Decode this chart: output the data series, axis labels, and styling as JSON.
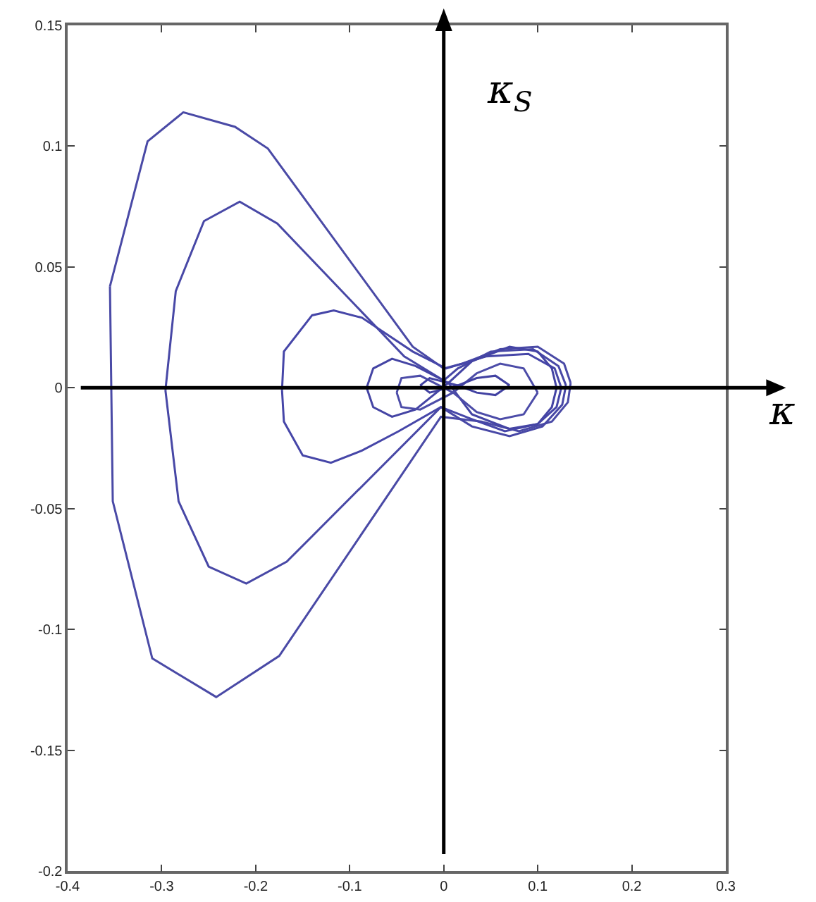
{
  "chart_data": {
    "type": "line",
    "xlim": [
      -0.4,
      0.3
    ],
    "xticks": [
      -0.4,
      -0.3,
      -0.2,
      -0.1,
      0,
      0.1,
      0.2,
      0.3
    ],
    "ylim": [
      -0.2,
      0.15
    ],
    "yticks": [
      -0.2,
      -0.15,
      -0.1,
      -0.05,
      0,
      0.05,
      0.1,
      0.15
    ],
    "grid": false,
    "ref_lines": [
      {
        "axis": "y",
        "value": 0,
        "label": "κ",
        "color": "#000000"
      },
      {
        "axis": "x",
        "value": 0,
        "label": "κ$_{S}$",
        "color": "#000000"
      }
    ],
    "series": [
      {
        "color": "#4a4aa6",
        "x": [
          -0.355,
          -0.315,
          -0.277,
          -0.222,
          -0.187,
          -0.033,
          0,
          0.02,
          0.06,
          0.1,
          0.128,
          0.135,
          null,
          -0.355,
          -0.352,
          -0.31,
          -0.242,
          -0.175,
          -0.003,
          0.04,
          0.08,
          0.115,
          0.132,
          0.135
        ],
        "values": [
          0.042,
          0.102,
          0.114,
          0.108,
          0.099,
          0.017,
          0.008,
          0.01,
          0.016,
          0.017,
          0.01,
          0.002,
          null,
          0.042,
          -0.047,
          -0.112,
          -0.128,
          -0.111,
          -0.012,
          -0.014,
          -0.018,
          -0.014,
          -0.006,
          0.002
        ]
      },
      {
        "color": "#4848a6",
        "x": [
          -0.296,
          -0.285,
          -0.255,
          -0.217,
          -0.177,
          -0.042,
          0,
          0.015,
          0.05,
          0.095,
          0.122,
          0.13,
          null,
          -0.296,
          -0.282,
          -0.25,
          -0.21,
          -0.167,
          -0.003,
          0.03,
          0.07,
          0.105,
          0.126,
          0.13
        ],
        "values": [
          -0.001,
          0.04,
          0.069,
          0.077,
          0.068,
          0.013,
          0.003,
          0.008,
          0.015,
          0.016,
          0.009,
          0.001,
          null,
          -0.001,
          -0.047,
          -0.074,
          -0.081,
          -0.072,
          -0.008,
          -0.016,
          -0.02,
          -0.016,
          -0.007,
          0.001
        ]
      },
      {
        "color": "#4646a8",
        "x": [
          -0.172,
          -0.17,
          -0.14,
          -0.117,
          -0.087,
          -0.033,
          0.0025,
          0.045,
          0.09,
          0.118,
          0.125,
          null,
          -0.172,
          -0.17,
          -0.15,
          -0.12,
          -0.087,
          -0.048,
          -0.003,
          0.03,
          0.065,
          0.1,
          0.12,
          0.125
        ],
        "values": [
          -0.001,
          0.015,
          0.03,
          0.032,
          0.029,
          0.015,
          0.008,
          0.013,
          0.014,
          0.008,
          0,
          null,
          -0.001,
          -0.014,
          -0.028,
          -0.031,
          -0.026,
          -0.018,
          -0.008,
          -0.013,
          -0.018,
          -0.015,
          -0.008,
          0
        ]
      },
      {
        "color": "#4444a4",
        "x": [
          -0.082,
          -0.075,
          -0.055,
          -0.03,
          0.005,
          0.03,
          0.07,
          0.1,
          0.115,
          0.12,
          null,
          -0.082,
          -0.075,
          -0.055,
          -0.03,
          0.005,
          0.03,
          0.07,
          0.1,
          0.115,
          0.12
        ],
        "values": [
          0,
          0.008,
          0.012,
          0.009,
          0.002,
          0.011,
          0.017,
          0.015,
          0.008,
          0,
          null,
          0,
          -0.008,
          -0.012,
          -0.009,
          0.002,
          -0.011,
          -0.017,
          -0.015,
          -0.008,
          0
        ]
      },
      {
        "color": "#4c4ca8",
        "x": [
          -0.05,
          -0.045,
          -0.025,
          0.01,
          0.035,
          0.06,
          0.085,
          0.1,
          null,
          -0.05,
          -0.045,
          -0.025,
          0.01,
          0.035,
          0.06,
          0.085,
          0.1
        ],
        "values": [
          -0.002,
          0.004,
          0.005,
          -0.002,
          0.006,
          0.01,
          0.008,
          -0.002,
          null,
          -0.002,
          -0.008,
          -0.009,
          -0.002,
          -0.01,
          -0.013,
          -0.011,
          -0.002
        ]
      },
      {
        "color": "#4242a2",
        "x": [
          -0.025,
          -0.015,
          0.015,
          0.035,
          0.055,
          0.07,
          null,
          -0.025,
          -0.015,
          0.015,
          0.035,
          0.055,
          0.07
        ],
        "values": [
          0.001,
          0.004,
          0.001,
          0.004,
          0.005,
          0.001,
          null,
          0.001,
          -0.002,
          0.001,
          -0.002,
          -0.003,
          0.001
        ]
      }
    ]
  }
}
